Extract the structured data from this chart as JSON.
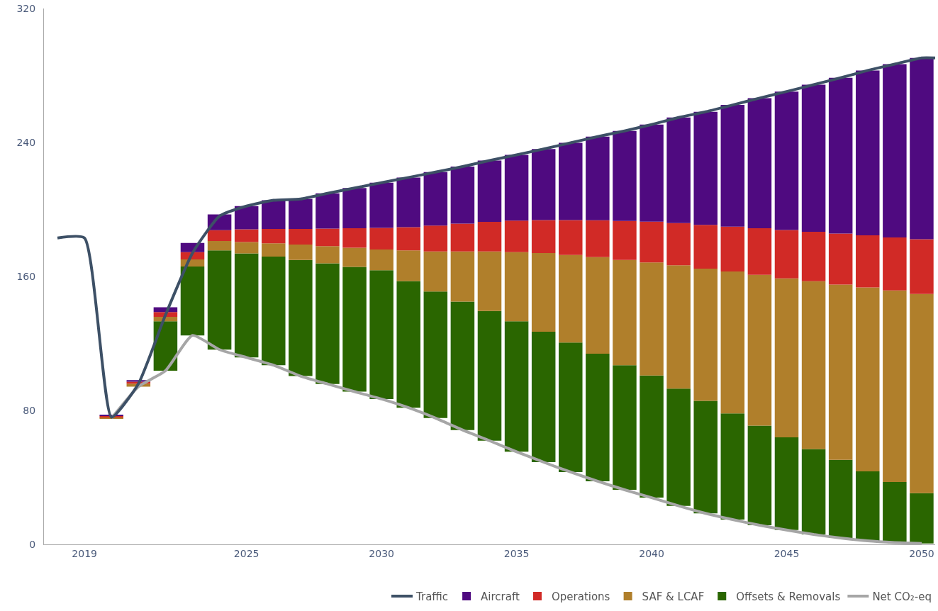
{
  "chart_data": {
    "type": "bar",
    "x": [
      2020,
      2021,
      2022,
      2023,
      2024,
      2025,
      2026,
      2027,
      2028,
      2029,
      2030,
      2031,
      2032,
      2033,
      2034,
      2035,
      2036,
      2037,
      2038,
      2039,
      2040,
      2041,
      2042,
      2043,
      2044,
      2045,
      2046,
      2047,
      2048,
      2049,
      2050
    ],
    "series": [
      {
        "name": "Net CO₂-eq",
        "type": "line",
        "color": "#a6a6a6",
        "values": [
          75.3,
          94.2,
          103.7,
          124.8,
          116.3,
          111.6,
          107.0,
          100.5,
          95.8,
          91.2,
          86.8,
          81.6,
          75.4,
          68.3,
          61.9,
          55.3,
          49.1,
          43.2,
          37.7,
          32.6,
          27.9,
          23.0,
          18.5,
          14.8,
          11.4,
          8.6,
          5.9,
          3.8,
          2.1,
          1.1,
          0.5
        ]
      },
      {
        "name": "Offsets & Removals",
        "color": "#2a6600",
        "base": [
          null,
          null,
          103.7,
          124.8,
          116.3,
          111.6,
          107.0,
          100.5,
          95.8,
          91.2,
          86.8,
          81.6,
          75.4,
          68.3,
          61.9,
          55.3,
          49.1,
          43.2,
          37.7,
          32.6,
          27.9,
          23.0,
          18.5,
          14.8,
          11.4,
          8.6,
          5.9,
          3.8,
          2.1,
          1.1,
          0.5
        ],
        "values": [
          null,
          null,
          29.5,
          41.1,
          59.3,
          62.2,
          64.9,
          69.3,
          72.0,
          74.5,
          76.9,
          75.6,
          75.6,
          76.7,
          77.5,
          77.9,
          77.9,
          77.3,
          76.2,
          74.4,
          72.9,
          70.0,
          67.2,
          63.4,
          59.5,
          55.3,
          51.0,
          46.7,
          41.5,
          36.1,
          30.1
        ]
      },
      {
        "name": "SAF & LCAF",
        "color": "#b07f2b",
        "base": [
          75.3,
          94.2,
          133.2,
          165.9,
          175.6,
          173.8,
          171.9,
          169.8,
          167.8,
          165.7,
          163.7,
          157.2,
          151.0,
          145.0,
          139.4,
          133.2,
          127.0,
          120.5,
          113.9,
          107.0,
          100.8,
          93.0,
          85.7,
          78.2,
          70.9,
          63.9,
          56.9,
          50.5,
          43.6,
          37.2,
          30.6
        ],
        "values": [
          0.7,
          1.8,
          2.7,
          4.3,
          5.6,
          6.7,
          7.9,
          9.3,
          10.3,
          11.4,
          12.4,
          18.4,
          23.9,
          29.9,
          35.5,
          41.3,
          47.0,
          52.3,
          57.6,
          62.8,
          67.6,
          73.7,
          79.0,
          84.8,
          90.0,
          94.9,
          100.2,
          104.6,
          109.8,
          114.4,
          118.9
        ]
      },
      {
        "name": "Operations",
        "color": "#d12a26",
        "base": [
          76.0,
          96.0,
          135.9,
          170.2,
          181.2,
          180.5,
          179.8,
          179.1,
          178.1,
          177.1,
          176.1,
          175.6,
          174.9,
          174.9,
          174.9,
          174.5,
          174.0,
          172.8,
          171.5,
          169.8,
          168.4,
          166.7,
          164.7,
          163.0,
          160.9,
          158.8,
          157.1,
          155.1,
          153.4,
          151.6,
          149.5
        ],
        "values": [
          0.7,
          1.1,
          2.8,
          4.3,
          6.4,
          7.6,
          8.6,
          9.3,
          10.5,
          11.7,
          12.9,
          13.8,
          15.5,
          16.6,
          17.7,
          18.8,
          19.7,
          20.9,
          22.0,
          23.3,
          24.3,
          25.1,
          26.1,
          26.7,
          27.9,
          28.9,
          29.6,
          30.5,
          31.1,
          31.7,
          32.7
        ]
      },
      {
        "name": "Aircraft",
        "color": "#4f0a80",
        "base": [
          76.7,
          97.1,
          138.7,
          174.5,
          187.6,
          188.1,
          188.4,
          188.4,
          188.6,
          188.8,
          189.0,
          189.4,
          190.4,
          191.5,
          192.6,
          193.3,
          193.7,
          193.7,
          193.5,
          193.1,
          192.7,
          191.8,
          190.8,
          189.7,
          188.8,
          187.7,
          186.7,
          185.6,
          184.5,
          183.3,
          182.2
        ],
        "values": [
          0.7,
          1.0,
          2.9,
          5.5,
          9.4,
          13.9,
          17.1,
          17.8,
          21.0,
          24.0,
          27.0,
          29.7,
          31.9,
          34.1,
          36.6,
          39.3,
          42.4,
          46.1,
          50.0,
          53.8,
          58.0,
          63.1,
          67.5,
          72.7,
          77.7,
          82.7,
          87.8,
          93.0,
          98.5,
          103.5,
          108.3
        ]
      },
      {
        "name": "Traffic",
        "type": "line",
        "color": "#3d5066",
        "x": [
          2018,
          2019,
          2020,
          2021,
          2022,
          2023,
          2024,
          2025,
          2026,
          2027,
          2028,
          2029,
          2030,
          2031,
          2032,
          2033,
          2034,
          2035,
          2036,
          2037,
          2038,
          2039,
          2040,
          2041,
          2042,
          2043,
          2044,
          2045,
          2046,
          2047,
          2048,
          2049,
          2050,
          2050.5
        ],
        "values": [
          183,
          183,
          76,
          96,
          137,
          174,
          196,
          202,
          205.5,
          206.2,
          209.6,
          212.8,
          216.0,
          219.1,
          222.3,
          225.6,
          229.2,
          232.6,
          236.1,
          239.8,
          243.5,
          246.9,
          250.7,
          254.9,
          258.3,
          262.4,
          266.5,
          270.4,
          274.5,
          278.6,
          283.0,
          286.8,
          290.5,
          290.5
        ]
      }
    ],
    "xlim": [
      2017.5,
      2050.5
    ],
    "xticks": [
      2019,
      2025,
      2030,
      2035,
      2040,
      2045,
      2050
    ],
    "ylim": [
      0,
      320
    ],
    "yticks": [
      0,
      80,
      160,
      240,
      320
    ],
    "grid": false,
    "legend": "bottom right",
    "marker": "none",
    "line_style": "solid"
  }
}
